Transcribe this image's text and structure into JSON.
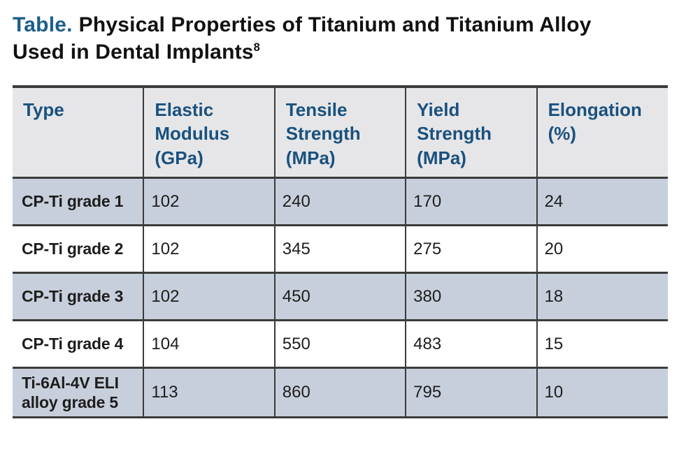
{
  "title": {
    "label": "Table.",
    "text": "Physical Properties of Titanium and Titanium Alloy Used in Dental Implants",
    "superscript": "8"
  },
  "colors": {
    "title_label_blue": "#1b5e8a",
    "header_text_blue": "#1a517e",
    "header_bg_gray": "#e6e6e8",
    "shaded_row_bg": "#c8cfdc",
    "border_dark": "#3b3b3b",
    "body_text": "#1d1d1d"
  },
  "table": {
    "headers": [
      "Type",
      "Elastic Modulus (GPa)",
      "Tensile Strength (MPa)",
      "Yield Strength (MPa)",
      "Elongation (%)"
    ],
    "rows": [
      {
        "cells": [
          "CP-Ti grade 1",
          "102",
          "240",
          "170",
          "24"
        ]
      },
      {
        "cells": [
          "CP-Ti grade 2",
          "102",
          "345",
          "275",
          "20"
        ]
      },
      {
        "cells": [
          "CP-Ti grade 3",
          "102",
          "450",
          "380",
          "18"
        ]
      },
      {
        "cells": [
          "CP-Ti grade 4",
          "104",
          "550",
          "483",
          "15"
        ]
      },
      {
        "cells": [
          "Ti-6Al-4V ELI alloy grade 5",
          "113",
          "860",
          "795",
          "10"
        ]
      }
    ]
  },
  "chart_data": {
    "type": "table",
    "title": "Table. Physical Properties of Titanium and Titanium Alloy Used in Dental Implants",
    "citation_superscript": "8",
    "columns": [
      "Type",
      "Elastic Modulus (GPa)",
      "Tensile Strength (MPa)",
      "Yield Strength (MPa)",
      "Elongation (%)"
    ],
    "rows": [
      {
        "type": "CP-Ti grade 1",
        "elastic_modulus_gpa": 102,
        "tensile_strength_mpa": 240,
        "yield_strength_mpa": 170,
        "elongation_pct": 24
      },
      {
        "type": "CP-Ti grade 2",
        "elastic_modulus_gpa": 102,
        "tensile_strength_mpa": 345,
        "yield_strength_mpa": 275,
        "elongation_pct": 20
      },
      {
        "type": "CP-Ti grade 3",
        "elastic_modulus_gpa": 102,
        "tensile_strength_mpa": 450,
        "yield_strength_mpa": 380,
        "elongation_pct": 18
      },
      {
        "type": "CP-Ti grade 4",
        "elastic_modulus_gpa": 104,
        "tensile_strength_mpa": 550,
        "yield_strength_mpa": 483,
        "elongation_pct": 15
      },
      {
        "type": "Ti-6Al-4V ELI alloy grade 5",
        "elastic_modulus_gpa": 113,
        "tensile_strength_mpa": 860,
        "yield_strength_mpa": 795,
        "elongation_pct": 10
      }
    ],
    "layout": {
      "header_row_shaded": true,
      "zebra_striping": "rows 1,3,5 blue-gray; rows 2,4 white",
      "gridlines": "thick dark horizontal separators, thin dark vertical separators, no outer left/right border"
    }
  }
}
